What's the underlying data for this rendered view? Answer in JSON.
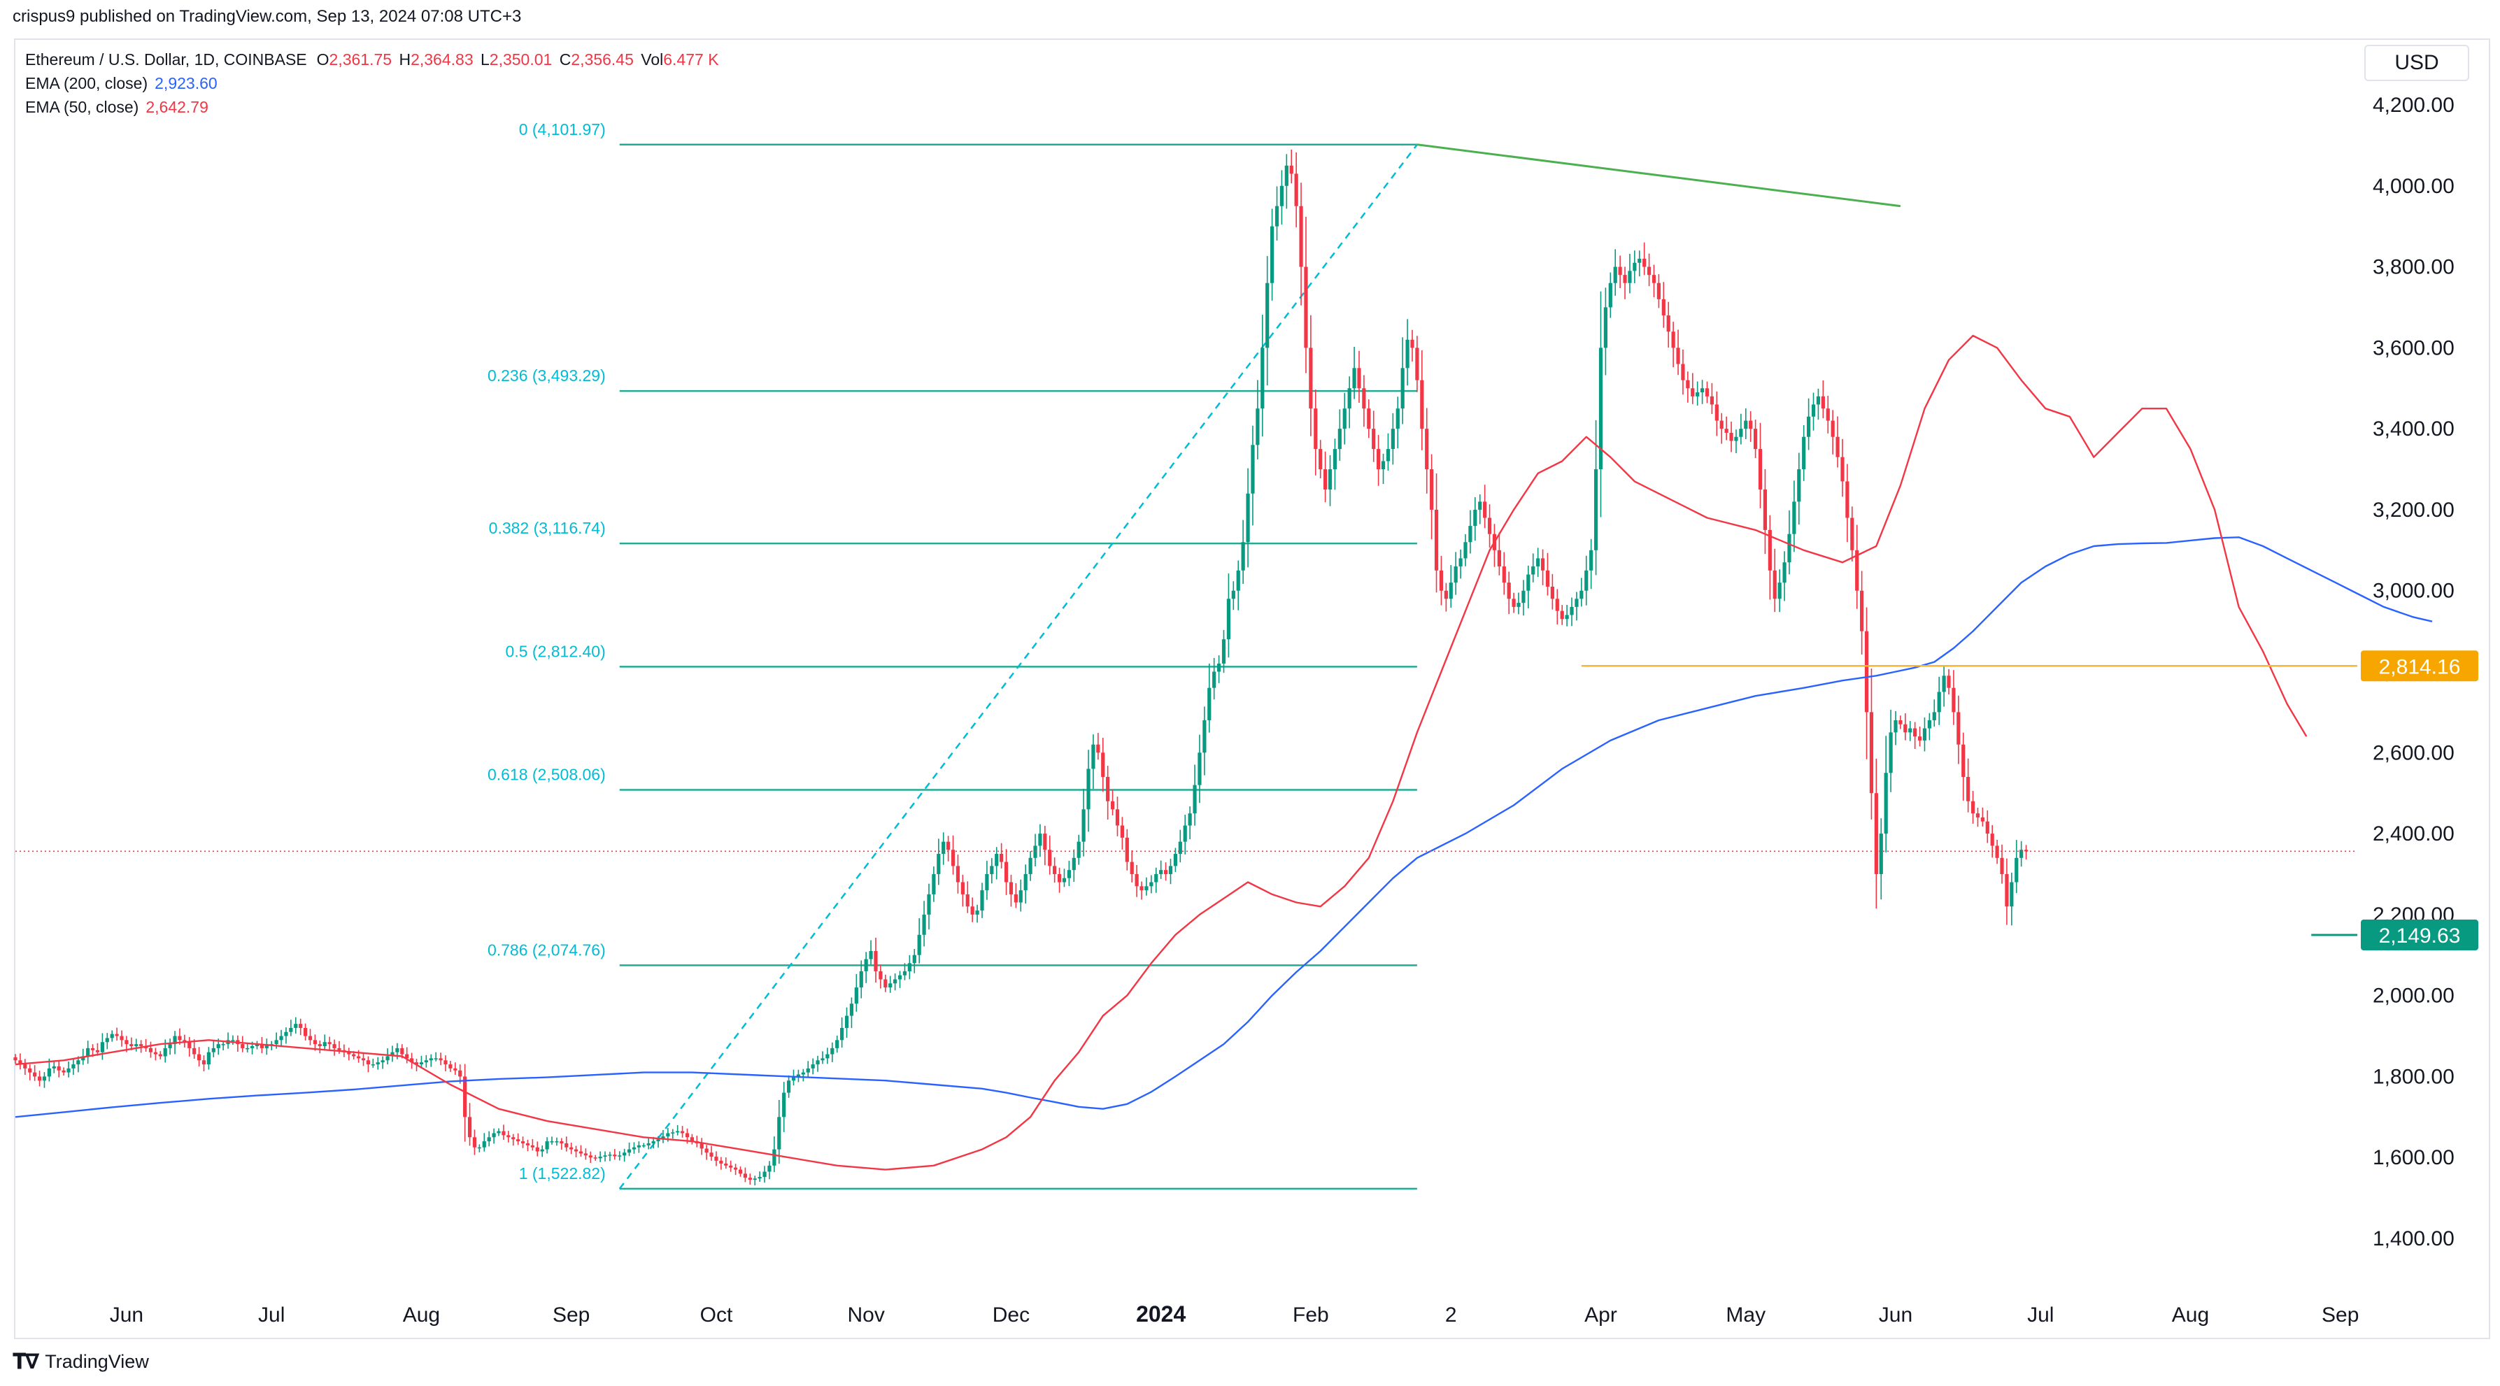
{
  "header": {
    "publisher": "crispus9 published on TradingView.com, Sep 13, 2024 07:08 UTC+3",
    "symbol": "Ethereum / U.S. Dollar, 1D, COINBASE",
    "open_label": "O",
    "open": "2,361.75",
    "high_label": "H",
    "high": "2,364.83",
    "low_label": "L",
    "low": "2,350.01",
    "close_label": "C",
    "close": "2,356.45",
    "vol_label": "Vol",
    "vol": "6.477 K",
    "ema200_label": "EMA (200, close)",
    "ema200_value": "2,923.60",
    "ema50_label": "EMA (50, close)",
    "ema50_value": "2,642.79",
    "currency": "USD"
  },
  "footer": {
    "brand": "TradingView"
  },
  "chart_data": {
    "type": "candlestick",
    "title": "Ethereum / U.S. Dollar, 1D, COINBASE",
    "ylim": [
      1300,
      4300
    ],
    "y_ticks": [
      "1,400.00",
      "1,600.00",
      "1,800.00",
      "2,000.00",
      "2,200.00",
      "2,400.00",
      "2,600.00",
      "2,800.00",
      "3,000.00",
      "3,200.00",
      "3,400.00",
      "3,600.00",
      "3,800.00",
      "4,000.00",
      "4,200.00"
    ],
    "y_tick_values": [
      1400,
      1600,
      1800,
      2000,
      2200,
      2400,
      2600,
      2800,
      3000,
      3200,
      3400,
      3600,
      3800,
      4000,
      4200
    ],
    "x_ticks": [
      "Jun",
      "Jul",
      "Aug",
      "Sep",
      "Oct",
      "Nov",
      "Dec",
      "2024",
      "Feb",
      "2",
      "Apr",
      "May",
      "Jun",
      "Jul",
      "Aug",
      "Sep"
    ],
    "x_tick_index": [
      23,
      53,
      84,
      115,
      145,
      176,
      206,
      237,
      268,
      297,
      328,
      358,
      389,
      419,
      450,
      481
    ],
    "first_candle_date": "2023-05-09",
    "colors": {
      "up": "#089981",
      "down": "#f23645",
      "ema200": "#2962ff",
      "ema50": "#f23645",
      "fib": "#22ab94",
      "fib_label": "#00bcd4",
      "trend": "#4caf50",
      "support": "#f7b731",
      "support_badge": "#f7a600",
      "low_badge": "#089981",
      "price_line": "#f23645",
      "grid": "#ffffff"
    },
    "closes": [
      1840,
      1830,
      1820,
      1810,
      1800,
      1790,
      1800,
      1820,
      1825,
      1815,
      1810,
      1820,
      1830,
      1840,
      1850,
      1870,
      1865,
      1860,
      1885,
      1895,
      1905,
      1900,
      1890,
      1880,
      1875,
      1880,
      1875,
      1870,
      1860,
      1855,
      1850,
      1870,
      1880,
      1900,
      1890,
      1885,
      1870,
      1855,
      1840,
      1830,
      1860,
      1870,
      1880,
      1880,
      1890,
      1890,
      1880,
      1870,
      1870,
      1875,
      1880,
      1870,
      1880,
      1880,
      1890,
      1900,
      1910,
      1920,
      1930,
      1920,
      1900,
      1890,
      1880,
      1875,
      1885,
      1880,
      1870,
      1865,
      1860,
      1855,
      1850,
      1845,
      1840,
      1830,
      1830,
      1835,
      1840,
      1850,
      1860,
      1870,
      1855,
      1845,
      1835,
      1830,
      1835,
      1840,
      1845,
      1845,
      1840,
      1830,
      1820,
      1815,
      1800,
      1700,
      1650,
      1625,
      1625,
      1640,
      1650,
      1660,
      1665,
      1655,
      1650,
      1645,
      1640,
      1635,
      1630,
      1625,
      1615,
      1620,
      1640,
      1640,
      1640,
      1635,
      1625,
      1620,
      1615,
      1610,
      1605,
      1600,
      1598,
      1602,
      1605,
      1607,
      1603,
      1605,
      1612,
      1620,
      1625,
      1630,
      1630,
      1635,
      1640,
      1645,
      1652,
      1660,
      1662,
      1665,
      1660,
      1650,
      1640,
      1635,
      1622,
      1612,
      1602,
      1592,
      1585,
      1580,
      1575,
      1570,
      1560,
      1550,
      1545,
      1548,
      1552,
      1565,
      1580,
      1620,
      1700,
      1760,
      1790,
      1800,
      1805,
      1810,
      1820,
      1830,
      1840,
      1845,
      1855,
      1870,
      1890,
      1920,
      1950,
      1980,
      2020,
      2060,
      2090,
      2110,
      2060,
      2040,
      2020,
      2030,
      2040,
      2050,
      2060,
      2080,
      2100,
      2150,
      2200,
      2250,
      2300,
      2350,
      2380,
      2360,
      2320,
      2280,
      2250,
      2220,
      2200,
      2210,
      2260,
      2300,
      2320,
      2350,
      2330,
      2280,
      2250,
      2230,
      2260,
      2300,
      2340,
      2370,
      2400,
      2360,
      2320,
      2300,
      2280,
      2290,
      2310,
      2340,
      2380,
      2460,
      2560,
      2620,
      2600,
      2540,
      2480,
      2460,
      2420,
      2390,
      2330,
      2300,
      2270,
      2260,
      2270,
      2280,
      2300,
      2310,
      2300,
      2320,
      2350,
      2380,
      2420,
      2450,
      2520,
      2600,
      2680,
      2760,
      2800,
      2820,
      2880,
      2980,
      3000,
      3050,
      3120,
      3240,
      3360,
      3450,
      3600,
      3760,
      3900,
      3950,
      4000,
      4050,
      4030,
      3950,
      3800,
      3600,
      3450,
      3350,
      3300,
      3250,
      3300,
      3350,
      3400,
      3450,
      3500,
      3550,
      3500,
      3450,
      3400,
      3350,
      3300,
      3320,
      3350,
      3400,
      3450,
      3550,
      3620,
      3600,
      3520,
      3400,
      3300,
      3200,
      3050,
      3000,
      2980,
      3020,
      3060,
      3080,
      3120,
      3160,
      3200,
      3220,
      3180,
      3140,
      3100,
      3060,
      3020,
      2980,
      2960,
      2970,
      3000,
      3040,
      3060,
      3080,
      3050,
      3010,
      2980,
      2950,
      2930,
      2940,
      2960,
      2980,
      3000,
      3050,
      3100,
      3300,
      3600,
      3700,
      3760,
      3800,
      3780,
      3760,
      3790,
      3810,
      3820,
      3800,
      3780,
      3760,
      3720,
      3680,
      3640,
      3600,
      3560,
      3520,
      3500,
      3480,
      3490,
      3500,
      3480,
      3460,
      3420,
      3400,
      3390,
      3370,
      3380,
      3400,
      3420,
      3400,
      3350,
      3250,
      3150,
      3050,
      2980,
      3020,
      3070,
      3140,
      3220,
      3300,
      3380,
      3430,
      3460,
      3480,
      3450,
      3420,
      3380,
      3330,
      3270,
      3180,
      3100,
      3000,
      2900,
      2700,
      2500,
      2300,
      2400,
      2550,
      2650,
      2680,
      2670,
      2650,
      2660,
      2640,
      2630,
      2660,
      2680,
      2700,
      2750,
      2790,
      2760,
      2700,
      2620,
      2540,
      2480,
      2450,
      2440,
      2430,
      2400,
      2370,
      2340,
      2300,
      2220,
      2280,
      2340,
      2360,
      2356
    ],
    "ema200": [
      1700,
      1712,
      1724,
      1735,
      1745,
      1753,
      1760,
      1768,
      1778,
      1788,
      1794,
      1798,
      1804,
      1810,
      1810,
      1805,
      1800,
      1795,
      1790,
      1780,
      1770,
      1760,
      1748,
      1737,
      1725,
      1720,
      1732,
      1762,
      1800,
      1840,
      1880,
      1935,
      2000,
      2058,
      2110,
      2170,
      2230,
      2290,
      2340,
      2400,
      2470,
      2560,
      2630,
      2680,
      2710,
      2740,
      2760,
      2778,
      2790,
      2800,
      2810,
      2824,
      2858,
      2900,
      2960,
      3020,
      3060,
      3090,
      3110,
      3115,
      3117,
      3118,
      3124,
      3130,
      3132,
      3110,
      3080,
      3050,
      3020,
      2990,
      2960,
      2935,
      2924
    ],
    "ema200_idx": [
      0,
      10,
      20,
      30,
      40,
      50,
      60,
      70,
      80,
      90,
      100,
      110,
      120,
      130,
      140,
      150,
      160,
      170,
      180,
      190,
      200,
      205,
      210,
      215,
      220,
      225,
      230,
      235,
      240,
      245,
      250,
      255,
      260,
      265,
      270,
      275,
      280,
      285,
      290,
      300,
      310,
      320,
      330,
      340,
      350,
      360,
      370,
      378,
      385,
      389,
      393,
      397,
      401,
      405,
      410,
      415,
      420,
      425,
      430,
      435,
      440,
      445,
      450,
      455,
      460,
      465,
      470,
      475,
      480,
      485,
      490,
      496,
      500
    ],
    "ema50": [
      1830,
      1840,
      1860,
      1880,
      1890,
      1880,
      1870,
      1860,
      1850,
      1780,
      1720,
      1690,
      1670,
      1650,
      1640,
      1620,
      1600,
      1580,
      1570,
      1580,
      1620,
      1650,
      1700,
      1790,
      1860,
      1950,
      2000,
      2080,
      2150,
      2200,
      2240,
      2280,
      2250,
      2230,
      2220,
      2270,
      2340,
      2480,
      2650,
      2800,
      2950,
      3100,
      3200,
      3290,
      3320,
      3380,
      3330,
      3270,
      3240,
      3180,
      3150,
      3100,
      3070,
      3110,
      3260,
      3450,
      3570,
      3630,
      3600,
      3520,
      3450,
      3430,
      3330,
      3390,
      3450,
      3450,
      3350,
      3200,
      2960,
      2850,
      2720,
      2640
    ],
    "ema50_idx": [
      0,
      10,
      20,
      30,
      40,
      50,
      60,
      70,
      80,
      90,
      100,
      110,
      120,
      130,
      140,
      150,
      160,
      170,
      180,
      190,
      200,
      205,
      210,
      215,
      220,
      225,
      230,
      235,
      240,
      245,
      250,
      255,
      260,
      265,
      270,
      275,
      280,
      285,
      290,
      295,
      300,
      305,
      310,
      315,
      320,
      325,
      330,
      335,
      340,
      350,
      360,
      370,
      378,
      385,
      390,
      395,
      400,
      405,
      410,
      415,
      420,
      425,
      430,
      435,
      440,
      445,
      450,
      455,
      460,
      465,
      470,
      474
    ],
    "fib_levels": [
      {
        "label": "0 (4,101.97)",
        "value": 4101.97
      },
      {
        "label": "0.236 (3,493.29)",
        "value": 3493.29
      },
      {
        "label": "0.382 (3,116.74)",
        "value": 3116.74
      },
      {
        "label": "0.5 (2,812.40)",
        "value": 2812.4
      },
      {
        "label": "0.618 (2,508.06)",
        "value": 2508.06
      },
      {
        "label": "0.786 (2,074.76)",
        "value": 2074.76
      },
      {
        "label": "1 (1,522.82)",
        "value": 1522.82
      }
    ],
    "fib_range_idx": [
      125,
      290
    ],
    "fib_line": {
      "from_idx": 125,
      "from_value": 1522.82,
      "to_idx": 290,
      "to_value": 4101.97
    },
    "trend_line": {
      "from_idx": 290,
      "from_value": 4101.97,
      "to_idx": 390,
      "to_value": 3950
    },
    "support": {
      "value": 2814.16,
      "label": "2,814.16",
      "from_idx": 324
    },
    "low_marker": {
      "value": 2149.63,
      "label": "2,149.63",
      "from_idx": 475
    },
    "current_price": 2356.45
  }
}
